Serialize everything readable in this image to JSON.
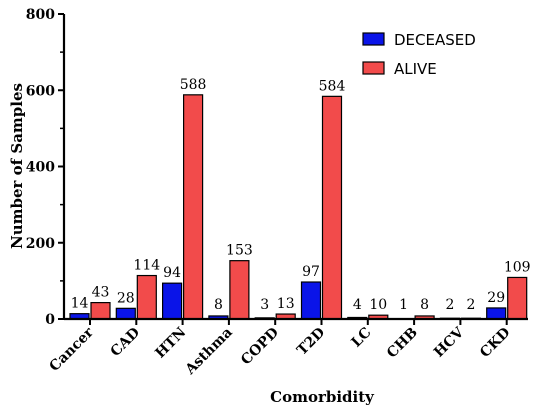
{
  "chart_data": {
    "type": "bar",
    "title": "",
    "xlabel": "Comorbidity",
    "ylabel": "Number of Samples",
    "ylim": [
      0,
      800
    ],
    "yticks": [
      0,
      200,
      400,
      600,
      800
    ],
    "categories": [
      "Cancer",
      "CAD",
      "HTN",
      "Asthma",
      "COPD",
      "T2D",
      "LC",
      "CHB",
      "HCV",
      "CKD"
    ],
    "series": [
      {
        "name": "DECEASED",
        "color": "#0a14e8",
        "values": [
          14,
          28,
          94,
          8,
          3,
          97,
          4,
          1,
          2,
          29
        ]
      },
      {
        "name": "ALIVE",
        "color": "#f24b4b",
        "values": [
          43,
          114,
          588,
          153,
          13,
          584,
          10,
          8,
          2,
          109
        ]
      }
    ],
    "legend_position": "top-right",
    "grid": false
  }
}
